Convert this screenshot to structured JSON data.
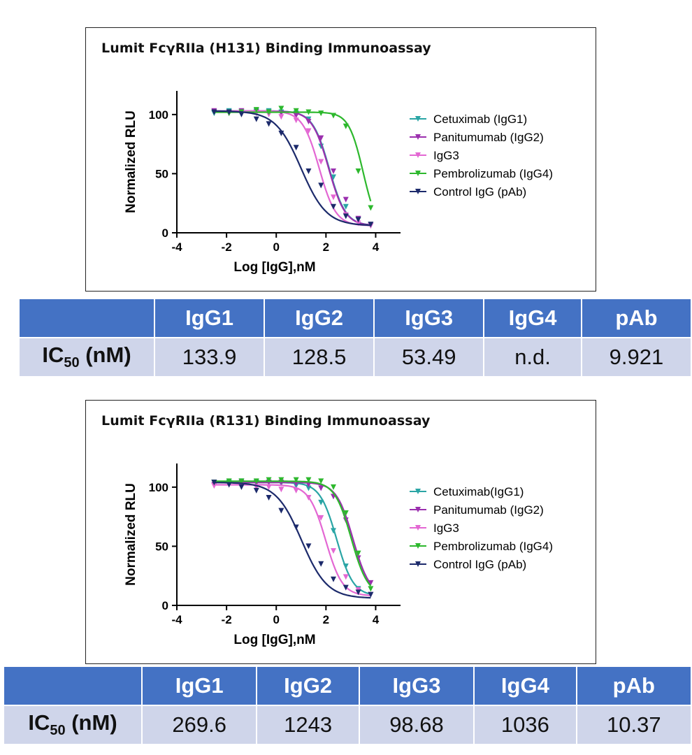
{
  "chart_data": [
    {
      "type": "line",
      "title": "Lumit FcγRIIa (H131) Binding Immunoassay",
      "xlabel": "Log [IgG],nM",
      "ylabel": "Normalized RLU",
      "xlim": [
        -4,
        5
      ],
      "ylim": [
        0,
        120
      ],
      "xticks": [
        "-4",
        "-2",
        "0",
        "2",
        "4"
      ],
      "yticks": [
        "0",
        "50",
        "100"
      ],
      "legend_position": "right",
      "series": [
        {
          "name": "Cetuximab (IgG1)",
          "color": "#2aa5a5",
          "ic50_log": 2.13,
          "bottom": 6,
          "top": 103,
          "hill": 1.3,
          "x": [
            -2.5,
            -1.9,
            -1.4,
            -0.8,
            -0.3,
            0.2,
            0.8,
            1.3,
            1.8,
            2.3,
            2.8,
            3.3,
            3.8
          ],
          "y": [
            101,
            103,
            102,
            103,
            103,
            102,
            101,
            96,
            73,
            47,
            22,
            11,
            6
          ]
        },
        {
          "name": "Panitumumab (IgG2)",
          "color": "#9b2fae",
          "ic50_log": 2.11,
          "bottom": 6,
          "top": 103,
          "hill": 1.3,
          "x": [
            -2.5,
            -1.9,
            -1.4,
            -0.8,
            -0.3,
            0.2,
            0.8,
            1.3,
            1.8,
            2.3,
            2.8,
            3.3,
            3.8
          ],
          "y": [
            103,
            102,
            103,
            102,
            102,
            101,
            99,
            94,
            80,
            52,
            28,
            12,
            6
          ]
        },
        {
          "name": "IgG3",
          "color": "#e367d3",
          "ic50_log": 1.73,
          "bottom": 6,
          "top": 103,
          "hill": 1.3,
          "x": [
            -2.5,
            -1.9,
            -1.4,
            -0.8,
            -0.3,
            0.2,
            0.8,
            1.3,
            1.8,
            2.3,
            2.8,
            3.3,
            3.8
          ],
          "y": [
            102,
            101,
            102,
            101,
            100,
            98,
            95,
            86,
            60,
            30,
            15,
            8,
            6
          ]
        },
        {
          "name": "Pembrolizumab (IgG4)",
          "color": "#2db82d",
          "ic50_log": 3.5,
          "bottom": 0,
          "top": 102,
          "hill": 1.5,
          "x": [
            -2.5,
            -1.9,
            -1.4,
            -0.8,
            -0.3,
            0.2,
            0.8,
            1.3,
            1.8,
            2.3,
            2.8,
            3.3,
            3.8
          ],
          "y": [
            102,
            101,
            102,
            104,
            102,
            105,
            103,
            102,
            101,
            99,
            90,
            52,
            21
          ]
        },
        {
          "name": "Control IgG (pAb)",
          "color": "#1c2a6b",
          "ic50_log": 1.0,
          "bottom": 6,
          "top": 103,
          "hill": 0.85,
          "x": [
            -2.5,
            -1.9,
            -1.4,
            -0.8,
            -0.3,
            0.2,
            0.8,
            1.3,
            1.8,
            2.3,
            2.8,
            3.3,
            3.8
          ],
          "y": [
            102,
            102,
            100,
            96,
            92,
            84,
            72,
            52,
            40,
            22,
            14,
            11,
            7
          ]
        }
      ]
    },
    {
      "type": "line",
      "title": "Lumit FcγRIIa (R131) Binding Immunoassay",
      "xlabel": "Log [IgG],nM",
      "ylabel": "Normalized RLU",
      "xlim": [
        -4,
        5
      ],
      "ylim": [
        0,
        120
      ],
      "xticks": [
        "-4",
        "-2",
        "0",
        "2",
        "4"
      ],
      "yticks": [
        "0",
        "50",
        "100"
      ],
      "legend_position": "right",
      "series": [
        {
          "name": "Cetuximab(IgG1)",
          "color": "#2aa5a5",
          "ic50_log": 2.43,
          "bottom": 8,
          "top": 104,
          "hill": 1.3,
          "x": [
            -2.5,
            -1.9,
            -1.4,
            -0.8,
            -0.3,
            0.2,
            0.8,
            1.3,
            1.8,
            2.3,
            2.8,
            3.3,
            3.8
          ],
          "y": [
            104,
            104,
            105,
            104,
            104,
            103,
            101,
            99,
            87,
            63,
            33,
            14,
            9
          ]
        },
        {
          "name": "Panitumumab (IgG2)",
          "color": "#9b2fae",
          "ic50_log": 3.09,
          "bottom": 8,
          "top": 104,
          "hill": 1.3,
          "x": [
            -2.5,
            -1.9,
            -1.4,
            -0.8,
            -0.3,
            0.2,
            0.8,
            1.3,
            1.8,
            2.3,
            2.8,
            3.3,
            3.8
          ],
          "y": [
            102,
            103,
            104,
            103,
            104,
            104,
            103,
            102,
            99,
            92,
            72,
            40,
            19
          ]
        },
        {
          "name": "IgG3",
          "color": "#e367d3",
          "ic50_log": 1.99,
          "bottom": 8,
          "top": 102,
          "hill": 1.3,
          "x": [
            -2.5,
            -1.9,
            -1.4,
            -0.8,
            -0.3,
            0.2,
            0.8,
            1.3,
            1.8,
            2.3,
            2.8,
            3.3,
            3.8
          ],
          "y": [
            101,
            102,
            101,
            100,
            100,
            98,
            97,
            91,
            74,
            46,
            24,
            13,
            9
          ]
        },
        {
          "name": "Pembrolizumab (IgG4)",
          "color": "#2db82d",
          "ic50_log": 3.02,
          "bottom": 8,
          "top": 105,
          "hill": 1.3,
          "x": [
            -2.5,
            -1.9,
            -1.4,
            -0.8,
            -0.3,
            0.2,
            0.8,
            1.3,
            1.8,
            2.3,
            2.8,
            3.3,
            3.8
          ],
          "y": [
            104,
            105,
            105,
            105,
            106,
            106,
            106,
            106,
            105,
            100,
            78,
            44,
            14
          ]
        },
        {
          "name": "Control IgG (pAb)",
          "color": "#1c2a6b",
          "ic50_log": 1.02,
          "bottom": 6,
          "top": 104,
          "hill": 0.85,
          "x": [
            -2.5,
            -1.9,
            -1.4,
            -0.8,
            -0.3,
            0.2,
            0.8,
            1.3,
            1.8,
            2.3,
            2.8,
            3.3,
            3.8
          ],
          "y": [
            104,
            102,
            100,
            97,
            91,
            80,
            66,
            50,
            35,
            22,
            15,
            11,
            9
          ]
        }
      ]
    }
  ],
  "tables": [
    {
      "row_label_main": "IC",
      "row_label_sub": "50",
      "row_label_unit": "(nM)",
      "headers": [
        "IgG1",
        "IgG2",
        "IgG3",
        "IgG4",
        "pAb"
      ],
      "values": [
        "133.9",
        "128.5",
        "53.49",
        "n.d.",
        "9.921"
      ]
    },
    {
      "row_label_main": "IC",
      "row_label_sub": "50",
      "row_label_unit": "(nM)",
      "headers": [
        "IgG1",
        "IgG2",
        "IgG3",
        "IgG4",
        "pAb"
      ],
      "values": [
        "269.6",
        "1243",
        "98.68",
        "1036",
        "10.37"
      ]
    }
  ]
}
